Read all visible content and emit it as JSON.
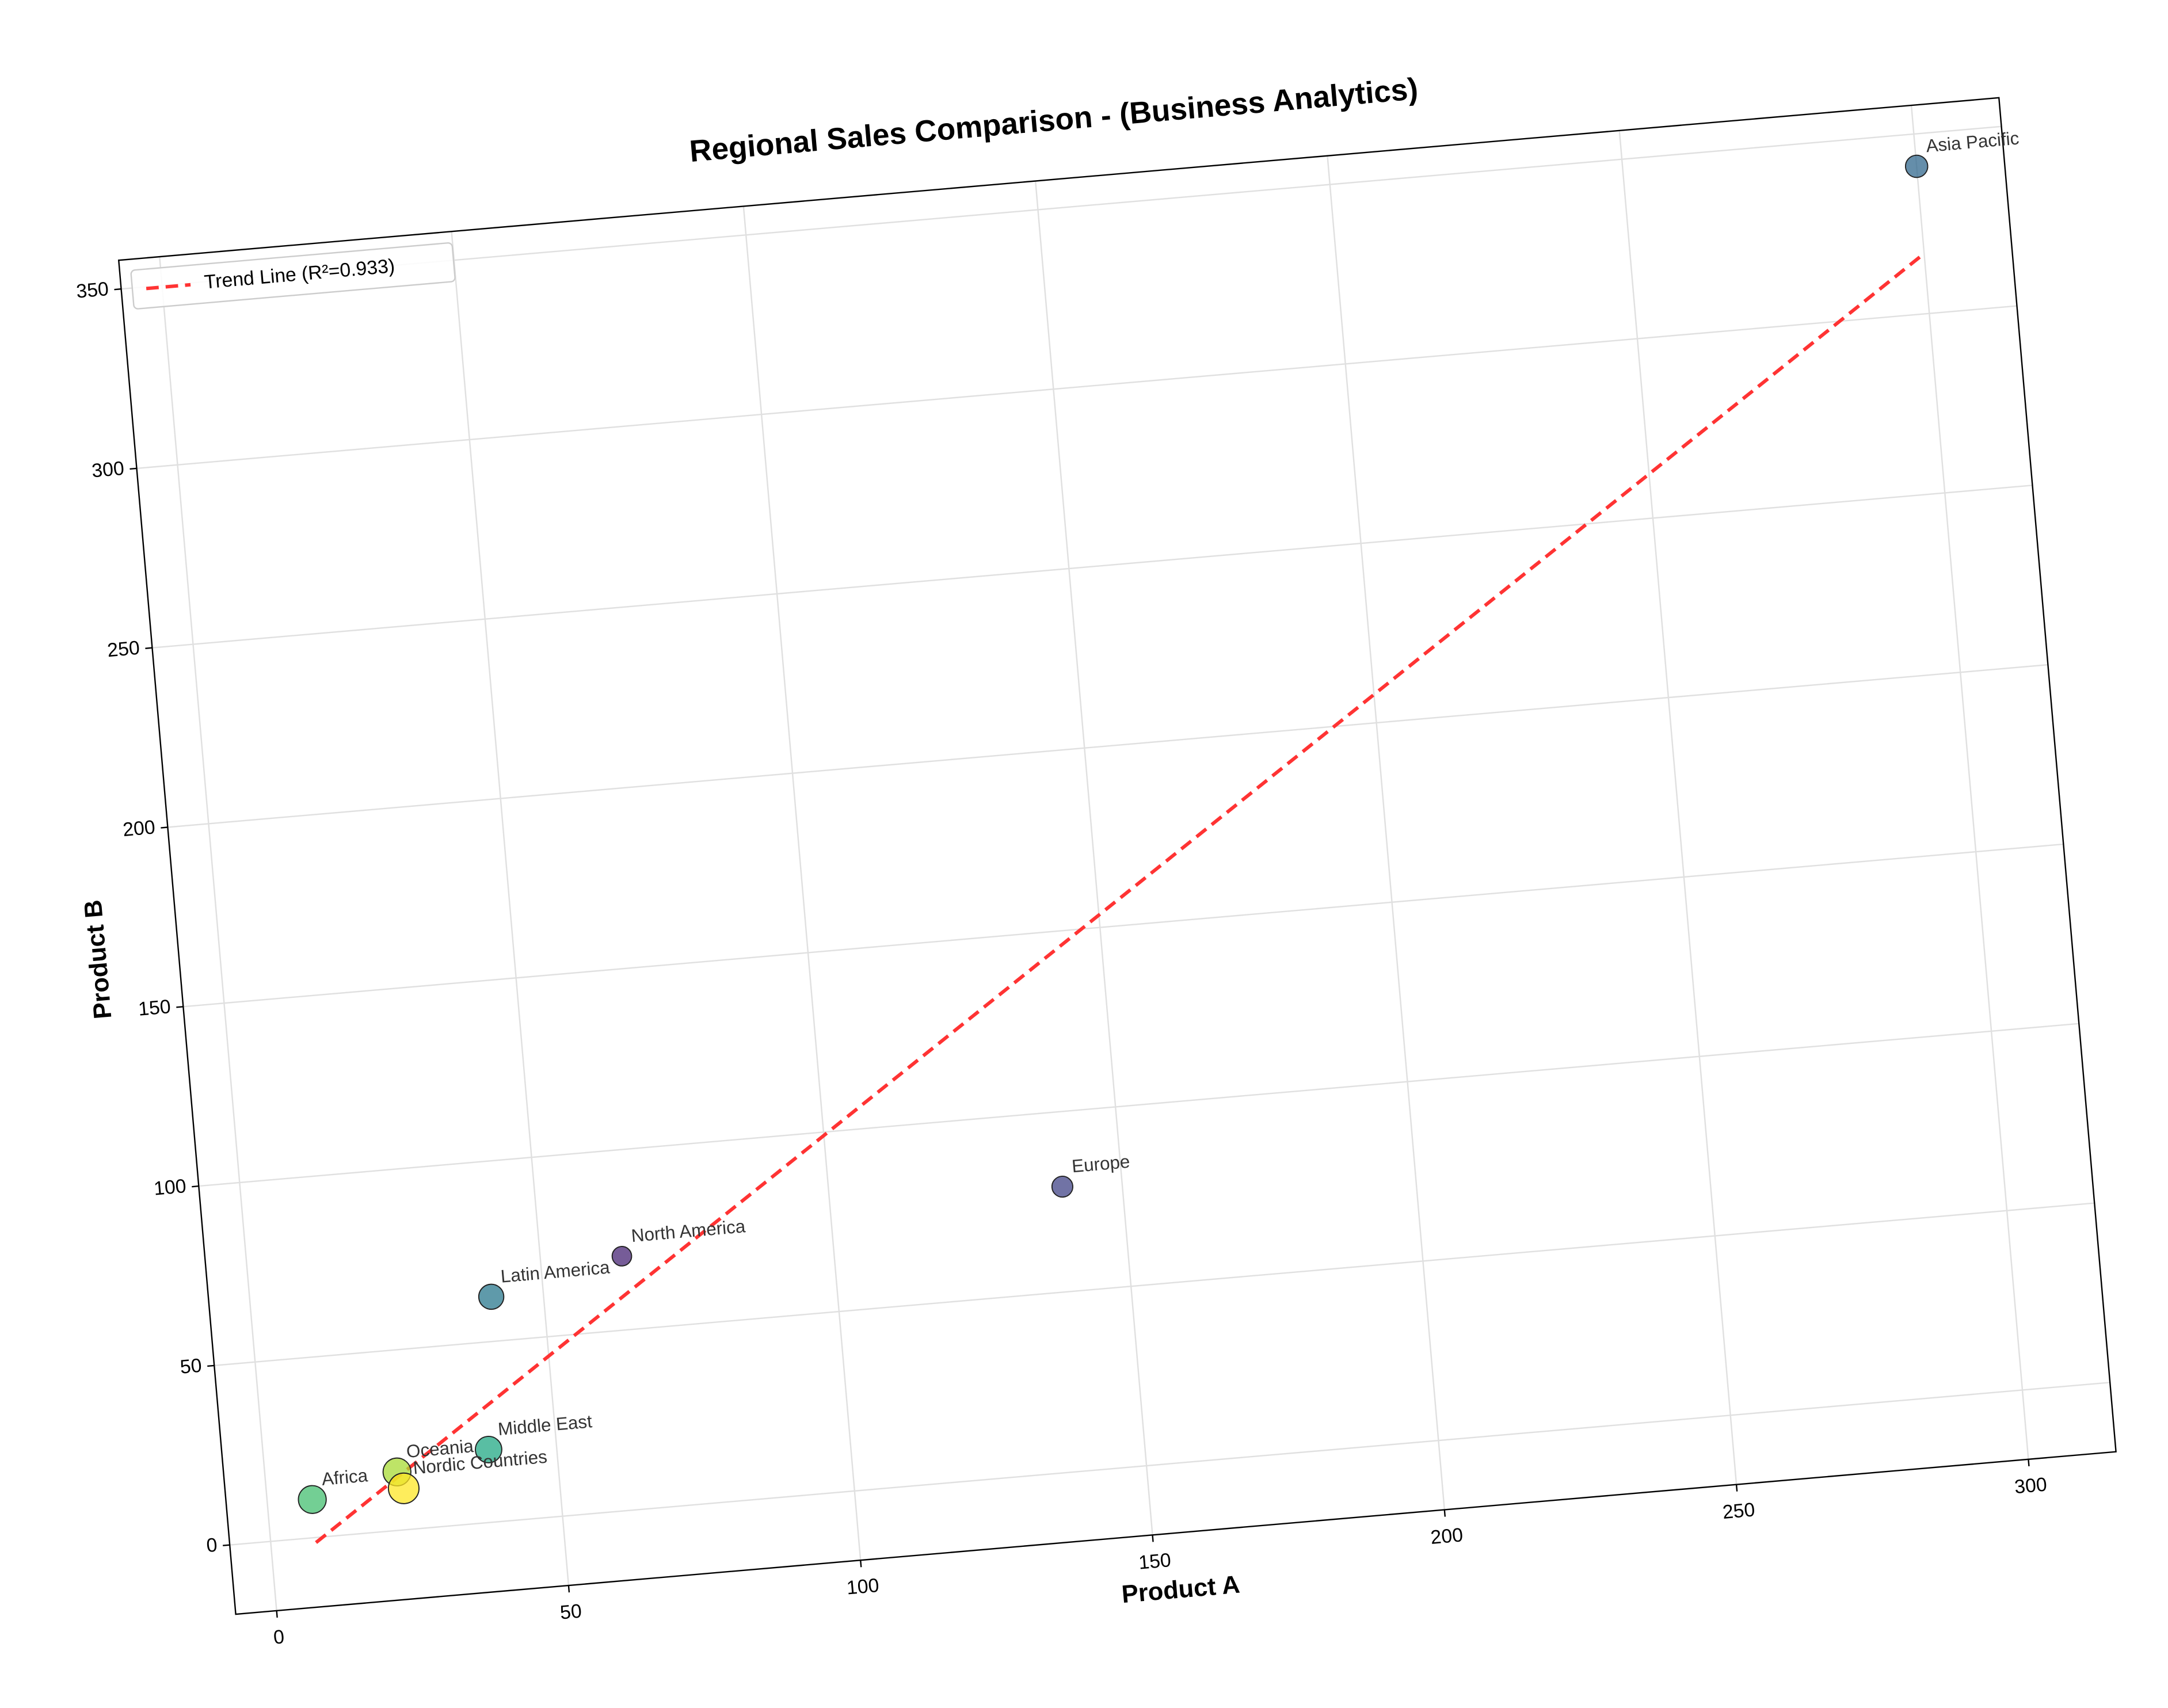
{
  "chart_data": {
    "type": "scatter",
    "title": "Regional Sales Comparison - (Business Analytics)",
    "x_label": "Product A",
    "y_label": "Product B",
    "xlim": [
      -7,
      315
    ],
    "ylim": [
      -19.3,
      358
    ],
    "xticks": [
      0,
      50,
      100,
      150,
      200,
      250,
      300
    ],
    "yticks": [
      0,
      50,
      100,
      150,
      200,
      250,
      300,
      350
    ],
    "grid": true,
    "legend": "upper left",
    "points": {
      "labels": [
        "North America",
        "Europe",
        "Asia Pacific",
        "Latin America",
        "Middle East",
        "Africa",
        "Oceania",
        "Nordic Countries"
      ],
      "x": [
        63.9,
        139.8,
        300,
        41.1,
        38.4,
        7.7,
        22.5,
        23.4
      ],
      "y": [
        70.5,
        79.2,
        341,
        62.4,
        20.2,
        10.6,
        16.2,
        11.5
      ],
      "sizes": [
        7,
        7.5,
        8,
        9,
        9.5,
        10,
        10,
        11
      ],
      "colors": [
        "#482576",
        "#414487",
        "#31688e",
        "#2a788e",
        "#22a884",
        "#44bf70",
        "#a8db34",
        "#fde725"
      ]
    },
    "trend_line": {
      "name": "Trend Line (R²=0.933)",
      "color": "#ff3333",
      "x": [
        7.7,
        300
      ],
      "y": [
        -1.4,
        316.7
      ]
    }
  }
}
